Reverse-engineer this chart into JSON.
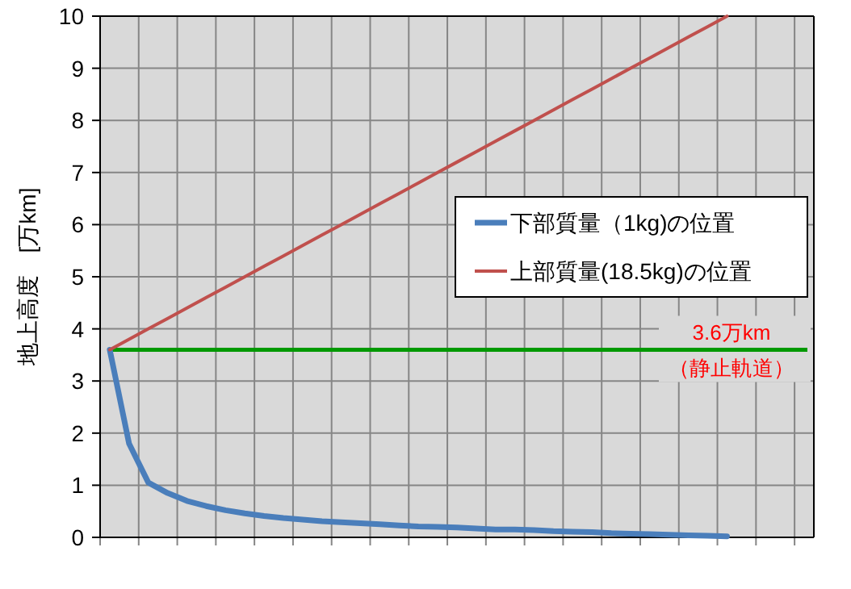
{
  "chart_data": {
    "type": "line",
    "ylabel": "地上高度　[万km]",
    "categories": [
      null,
      null,
      null,
      null,
      null,
      null,
      null,
      null,
      null,
      null,
      null,
      null,
      null,
      null,
      null,
      null,
      null,
      null,
      null,
      null,
      null,
      null,
      null,
      null,
      null,
      null,
      null,
      null,
      null,
      null,
      null,
      null,
      null,
      null,
      null,
      null,
      null
    ],
    "series": [
      {
        "name": "下部質量（1kg)の位置",
        "color": "#4a7ebb",
        "values": [
          3.6,
          1.8,
          1.05,
          0.85,
          0.7,
          0.6,
          0.52,
          0.46,
          0.41,
          0.37,
          0.34,
          0.31,
          0.29,
          0.27,
          0.25,
          0.23,
          0.21,
          0.2,
          0.19,
          0.17,
          0.15,
          0.15,
          0.14,
          0.12,
          0.11,
          0.1,
          0.08,
          0.07,
          0.06,
          0.05,
          0.04,
          0.03,
          0.02,
          null,
          null,
          null,
          null
        ]
      },
      {
        "name": "上部質量(18.5kg)の位置",
        "color": "#c0504d",
        "values": [
          3.6,
          3.8,
          4.0,
          4.2,
          4.4,
          4.6,
          4.8,
          5.0,
          5.2,
          5.4,
          5.6,
          5.8,
          6.0,
          6.2,
          6.4,
          6.6,
          6.8,
          7.0,
          7.2,
          7.4,
          7.6,
          7.8,
          8.0,
          8.2,
          8.4,
          8.6,
          8.8,
          9.0,
          9.2,
          9.4,
          9.6,
          9.8,
          10.0,
          null,
          null,
          null,
          null
        ]
      }
    ],
    "ylim": [
      0,
      10
    ],
    "yticks": [
      0,
      1,
      2,
      3,
      4,
      5,
      6,
      7,
      8,
      9,
      10
    ],
    "ref_lines": [
      {
        "axis": "y",
        "value": 3.6,
        "label": "3.6万km",
        "color": "#009900"
      }
    ],
    "annotations": [
      "（静止軌道）"
    ],
    "grid": true,
    "legend": "right",
    "marker": "none",
    "line_style": "solid"
  }
}
